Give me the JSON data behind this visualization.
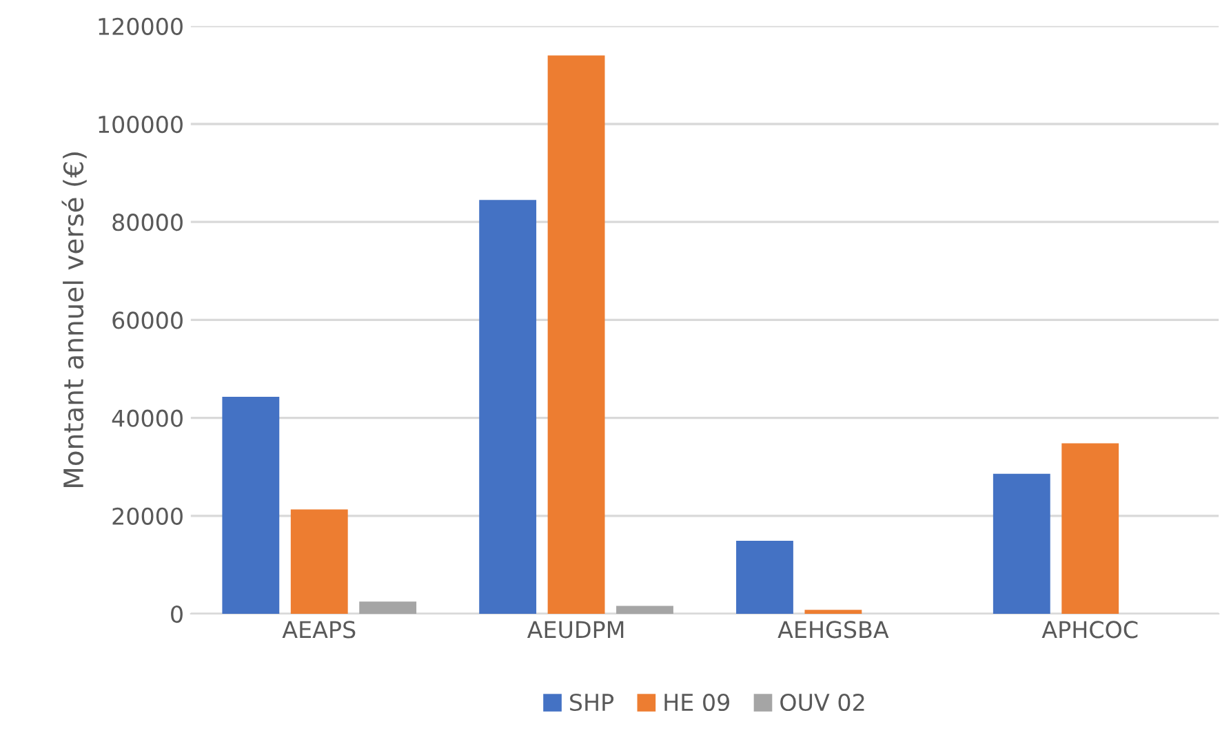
{
  "chart_data": {
    "type": "bar",
    "ylabel": "Montant annuel versé (€)",
    "categories": [
      "AEAPS",
      "AEUDPM",
      "AEHGSBA",
      "APHCOC"
    ],
    "series": [
      {
        "name": "SHP",
        "color": "#4472c4",
        "values": [
          44300,
          84500,
          14900,
          28600
        ]
      },
      {
        "name": "HE 09",
        "color": "#ed7d31",
        "values": [
          21300,
          114000,
          800,
          34800
        ]
      },
      {
        "name": "OUV 02",
        "color": "#a5a5a5",
        "values": [
          2500,
          1600,
          null,
          null
        ]
      }
    ],
    "ylim": [
      0,
      120000
    ],
    "yticks": [
      0,
      20000,
      40000,
      60000,
      80000,
      100000,
      120000
    ],
    "grid": "y",
    "legend": "bottom"
  }
}
